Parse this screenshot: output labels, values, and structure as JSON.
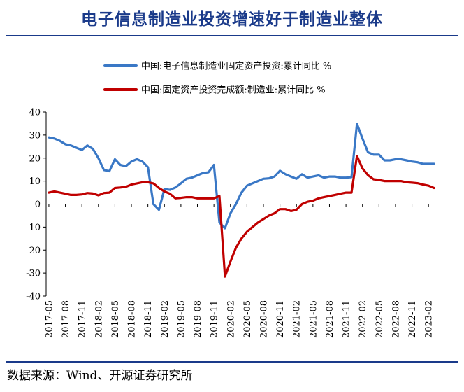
{
  "page": {
    "title": "电子信息制造业投资增速好于制造业整体",
    "source": "数据来源：Wind、开源证券研究所"
  },
  "chart_data": {
    "type": "line",
    "title": "电子信息制造业投资增速好于制造业整体",
    "ylim": [
      -40,
      40
    ],
    "yticks": [
      40,
      30,
      20,
      10,
      0,
      -10,
      -20,
      -30,
      -40
    ],
    "xticks": [
      "2017-05",
      "2017-08",
      "2017-11",
      "2018-02",
      "2018-05",
      "2018-08",
      "2018-11",
      "2019-02",
      "2019-05",
      "2019-08",
      "2019-11",
      "2020-02",
      "2020-05",
      "2020-08",
      "2020-11",
      "2021-02",
      "2021-05",
      "2021-08",
      "2021-11",
      "2022-02",
      "2022-05",
      "2022-08",
      "2022-11",
      "2023-02"
    ],
    "x": [
      "2017-05",
      "2017-06",
      "2017-07",
      "2017-08",
      "2017-09",
      "2017-10",
      "2017-11",
      "2017-12",
      "2018-01",
      "2018-02",
      "2018-03",
      "2018-04",
      "2018-05",
      "2018-06",
      "2018-07",
      "2018-08",
      "2018-09",
      "2018-10",
      "2018-11",
      "2018-12",
      "2019-01",
      "2019-02",
      "2019-03",
      "2019-04",
      "2019-05",
      "2019-06",
      "2019-07",
      "2019-08",
      "2019-09",
      "2019-10",
      "2019-11",
      "2019-12",
      "2020-01",
      "2020-02",
      "2020-03",
      "2020-04",
      "2020-05",
      "2020-06",
      "2020-07",
      "2020-08",
      "2020-09",
      "2020-10",
      "2020-11",
      "2020-12",
      "2021-01",
      "2021-02",
      "2021-03",
      "2021-04",
      "2021-05",
      "2021-06",
      "2021-07",
      "2021-08",
      "2021-09",
      "2021-10",
      "2021-11",
      "2021-12",
      "2022-01",
      "2022-02",
      "2022-03",
      "2022-04",
      "2022-05",
      "2022-06",
      "2022-07",
      "2022-08",
      "2022-09",
      "2022-10",
      "2022-11",
      "2022-12",
      "2023-01",
      "2023-02",
      "2023-03"
    ],
    "series": [
      {
        "name": "中国:电子信息制造业固定资产投资:累计同比 %",
        "color": "#3a78c6",
        "values": [
          29,
          28.5,
          27.5,
          26,
          25.5,
          24.5,
          23.5,
          25.5,
          24,
          20,
          14.8,
          14.3,
          19.5,
          17,
          16.5,
          18.5,
          19.5,
          18.5,
          16,
          0,
          -2.5,
          6.5,
          6.2,
          7.2,
          9,
          11,
          11.5,
          12.5,
          13.5,
          13.8,
          17,
          -8,
          -10.5,
          -4,
          0,
          5,
          8,
          9,
          10,
          11,
          11.2,
          12,
          14.5,
          13,
          12,
          11,
          13,
          11.5,
          12,
          12.5,
          11.5,
          12,
          12,
          11.5,
          11.5,
          11.7,
          34.9,
          28.5,
          22.5,
          21.5,
          21.5,
          19,
          19,
          19.5,
          19.5,
          19,
          18.5,
          18.2,
          17.5,
          17.5,
          17.5
        ]
      },
      {
        "name": "中国:固定资产投资完成额:制造业:累计同比 %",
        "color": "#c00000",
        "values": [
          5,
          5.5,
          5,
          4.5,
          4,
          4,
          4.2,
          4.8,
          4.6,
          3.8,
          4.8,
          5,
          7,
          7.2,
          7.5,
          8.5,
          9,
          9.5,
          9.5,
          9,
          7,
          5.5,
          4.5,
          2.5,
          2.7,
          3,
          3,
          2.5,
          2.5,
          2.5,
          2.5,
          3.5,
          -31.5,
          -25,
          -19,
          -15,
          -12,
          -10,
          -8,
          -6.5,
          -5,
          -4,
          -2.2,
          -2.2,
          -3,
          -2.5,
          0,
          1,
          1.5,
          2.5,
          3,
          3.5,
          4,
          4.5,
          5,
          5,
          20.9,
          15.5,
          12.6,
          10.8,
          10.5,
          10,
          10,
          10,
          10,
          9.5,
          9.3,
          9.1,
          8.5,
          8,
          7.0
        ]
      }
    ],
    "legend": {
      "placement": "top"
    },
    "grid": false
  }
}
